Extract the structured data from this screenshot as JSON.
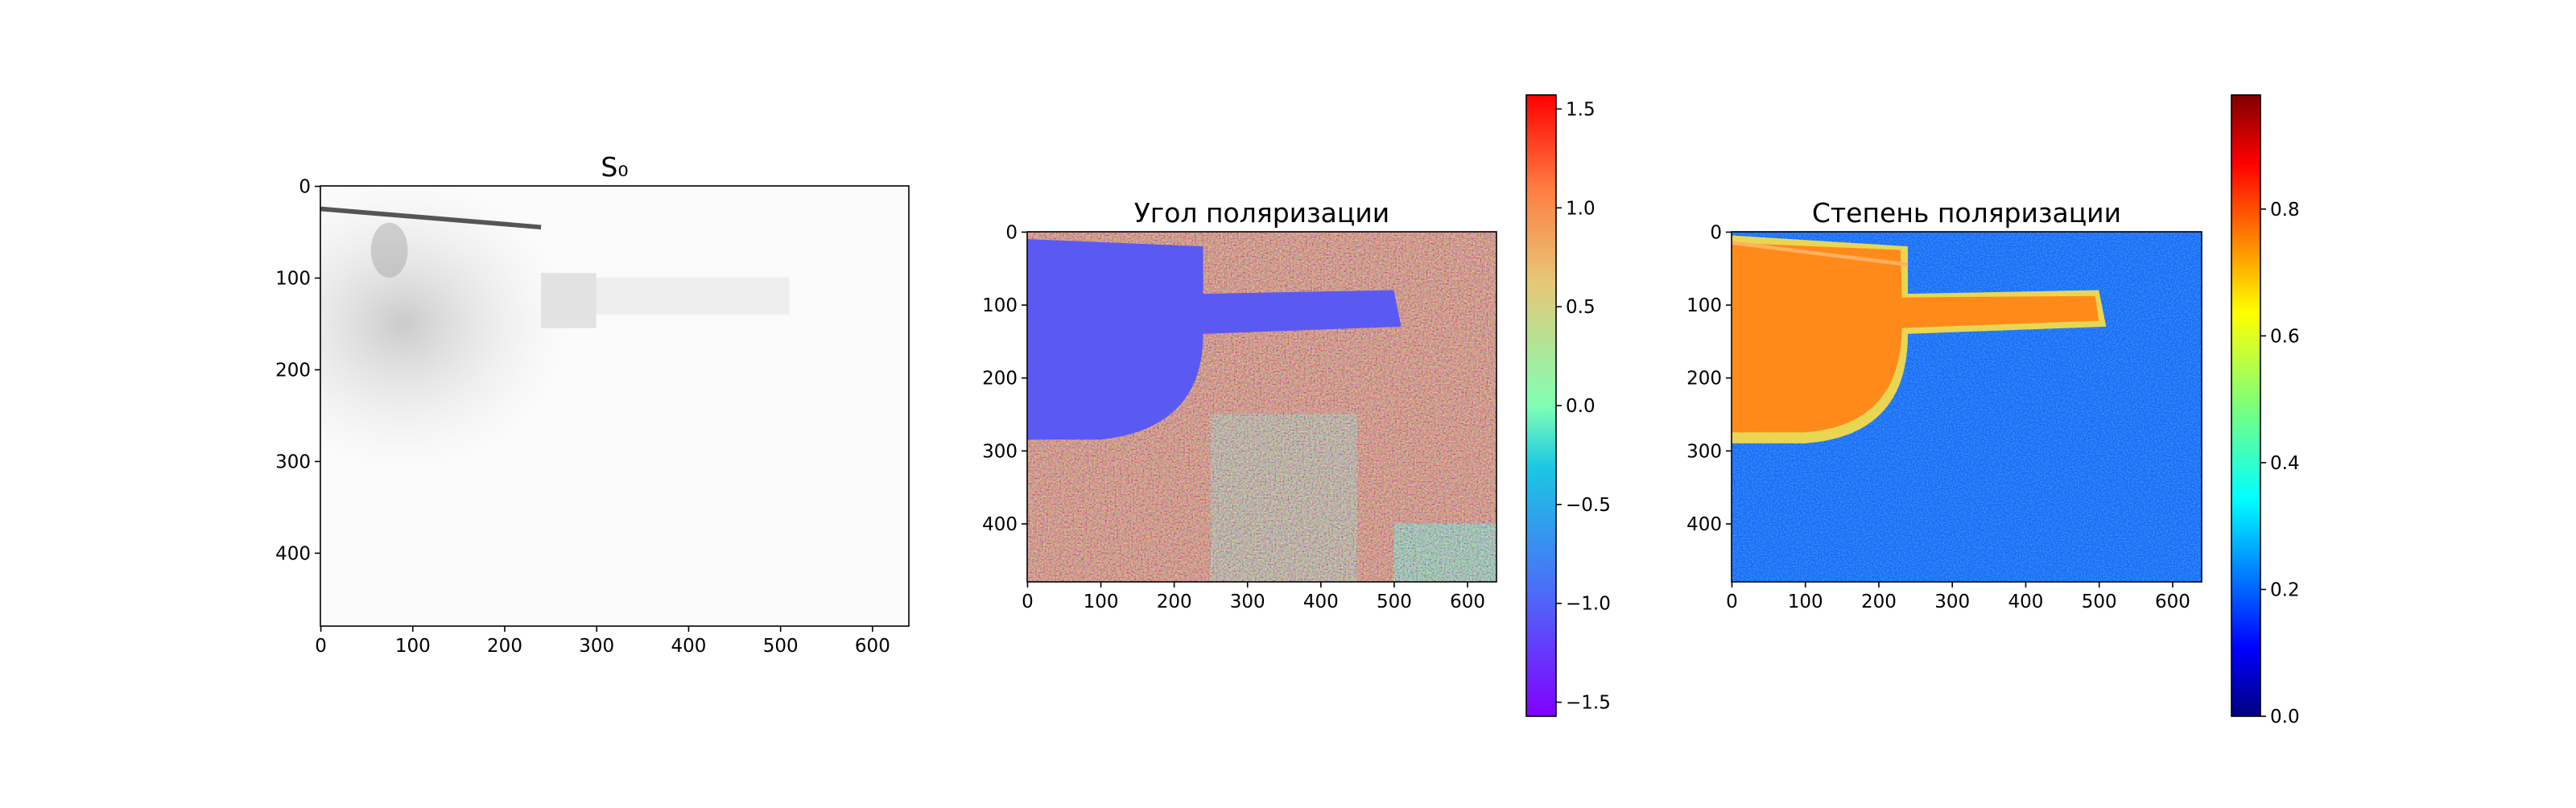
{
  "chart_data": [
    {
      "type": "image",
      "title": "S₀",
      "colormap": "gray_r",
      "xlim": [
        -0.5,
        639.5
      ],
      "ylim": [
        479.5,
        -0.5
      ],
      "xticks": [
        0,
        100,
        200,
        300,
        400,
        500,
        600
      ],
      "yticks": [
        0,
        100,
        200,
        300,
        400
      ]
    },
    {
      "type": "image",
      "title": "Угол поляризации",
      "colormap": "rainbow",
      "xlim": [
        -0.5,
        639.5
      ],
      "ylim": [
        479.5,
        -0.5
      ],
      "xticks": [
        0,
        100,
        200,
        300,
        400,
        500,
        600
      ],
      "yticks": [
        0,
        100,
        200,
        300,
        400
      ],
      "clim": [
        -1.5708,
        1.5708
      ],
      "cticks": [
        {
          "value": -1.5,
          "label": "−1.5"
        },
        {
          "value": -1.0,
          "label": "−1.0"
        },
        {
          "value": -0.5,
          "label": "−0.5"
        },
        {
          "value": 0.0,
          "label": "0.0"
        },
        0.5,
        {
          "value": 1.0,
          "label": "1.0"
        },
        1.5
      ]
    },
    {
      "type": "image",
      "title": "Степень поляризации",
      "colormap": "jet",
      "xlim": [
        -0.5,
        639.5
      ],
      "ylim": [
        479.5,
        -0.5
      ],
      "xticks": [
        0,
        100,
        200,
        300,
        400,
        500,
        600
      ],
      "yticks": [
        0,
        100,
        200,
        300,
        400
      ],
      "clim": [
        0,
        0.98
      ],
      "cticks": [
        {
          "value": 0.0,
          "label": "0.0"
        },
        0.2,
        0.4,
        0.6,
        0.8
      ]
    }
  ]
}
